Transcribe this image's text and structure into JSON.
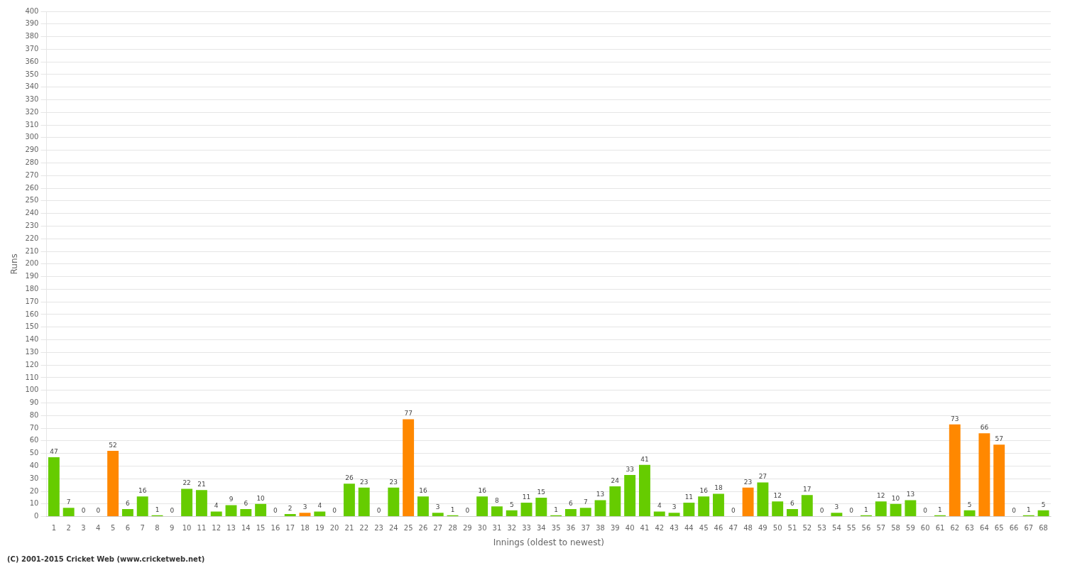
{
  "chart_data": {
    "type": "bar",
    "categories": [
      "1",
      "2",
      "3",
      "4",
      "5",
      "6",
      "7",
      "8",
      "9",
      "10",
      "11",
      "12",
      "13",
      "14",
      "15",
      "16",
      "17",
      "18",
      "19",
      "20",
      "21",
      "22",
      "23",
      "24",
      "25",
      "26",
      "27",
      "28",
      "29",
      "30",
      "31",
      "32",
      "33",
      "34",
      "35",
      "36",
      "37",
      "38",
      "39",
      "40",
      "41",
      "42",
      "43",
      "44",
      "45",
      "46",
      "47",
      "48",
      "49",
      "50",
      "51",
      "52",
      "53",
      "54",
      "55",
      "56",
      "57",
      "58",
      "59",
      "60",
      "61",
      "62",
      "63",
      "64",
      "65",
      "66",
      "67",
      "68"
    ],
    "values": [
      47,
      7,
      0,
      0,
      52,
      6,
      16,
      1,
      0,
      22,
      21,
      4,
      9,
      6,
      10,
      0,
      2,
      3,
      4,
      0,
      26,
      23,
      0,
      23,
      77,
      16,
      3,
      1,
      0,
      16,
      8,
      5,
      11,
      15,
      1,
      6,
      7,
      13,
      24,
      33,
      41,
      4,
      3,
      11,
      16,
      18,
      0,
      23,
      27,
      12,
      6,
      17,
      0,
      3,
      0,
      1,
      12,
      10,
      13,
      0,
      1,
      73,
      5,
      66,
      57,
      0,
      1,
      5
    ],
    "colors": [
      "#66cc00",
      "#66cc00",
      "#66cc00",
      "#66cc00",
      "#ff8800",
      "#66cc00",
      "#66cc00",
      "#66cc00",
      "#66cc00",
      "#66cc00",
      "#66cc00",
      "#66cc00",
      "#66cc00",
      "#66cc00",
      "#66cc00",
      "#66cc00",
      "#66cc00",
      "#ff8800",
      "#66cc00",
      "#66cc00",
      "#66cc00",
      "#66cc00",
      "#66cc00",
      "#66cc00",
      "#ff8800",
      "#66cc00",
      "#66cc00",
      "#66cc00",
      "#66cc00",
      "#66cc00",
      "#66cc00",
      "#66cc00",
      "#66cc00",
      "#66cc00",
      "#66cc00",
      "#66cc00",
      "#66cc00",
      "#66cc00",
      "#66cc00",
      "#66cc00",
      "#66cc00",
      "#66cc00",
      "#66cc00",
      "#66cc00",
      "#66cc00",
      "#66cc00",
      "#66cc00",
      "#ff8800",
      "#66cc00",
      "#66cc00",
      "#66cc00",
      "#66cc00",
      "#66cc00",
      "#66cc00",
      "#66cc00",
      "#66cc00",
      "#66cc00",
      "#66cc00",
      "#66cc00",
      "#66cc00",
      "#66cc00",
      "#ff8800",
      "#66cc00",
      "#ff8800",
      "#ff8800",
      "#66cc00",
      "#66cc00",
      "#66cc00"
    ],
    "xlabel": "Innings (oldest to newest)",
    "ylabel": "Runs",
    "ylim": [
      0,
      400
    ],
    "yticks": [
      0,
      10,
      20,
      30,
      40,
      50,
      60,
      70,
      80,
      90,
      100,
      110,
      120,
      130,
      140,
      150,
      160,
      170,
      180,
      190,
      200,
      210,
      220,
      230,
      240,
      250,
      260,
      270,
      280,
      290,
      300,
      310,
      320,
      330,
      340,
      350,
      360,
      370,
      380,
      390,
      400
    ],
    "grid": true,
    "data_labels": true,
    "footer": "(C) 2001-2015 Cricket Web (www.cricketweb.net)"
  }
}
